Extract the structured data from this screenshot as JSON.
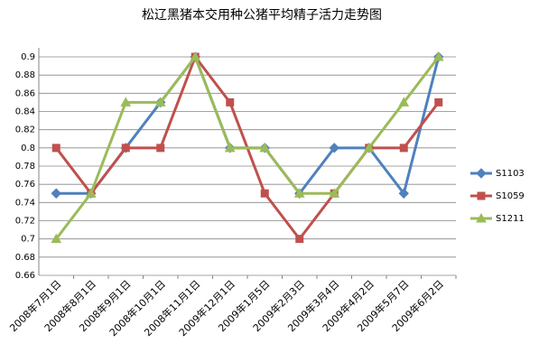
{
  "chart_data": {
    "type": "line",
    "title": "松辽黑猪本交用种公猪平均精子活力走势图",
    "categories": [
      "2008年7月1日",
      "2008年8月1日",
      "2008年9月1日",
      "2008年10月1日",
      "2008年11月1日",
      "2009年12月1日",
      "2009年1月5日",
      "2009年2月3日",
      "2009年3月4日",
      "2009年4月2日",
      "2009年5月7日",
      "2009年6月2日"
    ],
    "series": [
      {
        "name": "S1103",
        "color": "#4f81bd",
        "marker": "diamond",
        "values": [
          0.75,
          0.75,
          0.8,
          0.85,
          0.9,
          0.8,
          0.8,
          0.75,
          0.8,
          0.8,
          0.75,
          0.9
        ]
      },
      {
        "name": "S1059",
        "color": "#c0504d",
        "marker": "square",
        "values": [
          0.8,
          0.75,
          0.8,
          0.8,
          0.9,
          0.85,
          0.75,
          0.7,
          0.75,
          0.8,
          0.8,
          0.85
        ]
      },
      {
        "name": "S1211",
        "color": "#9bbb59",
        "marker": "triangle",
        "values": [
          0.7,
          0.75,
          0.85,
          0.85,
          0.9,
          0.8,
          0.8,
          0.75,
          0.75,
          0.8,
          0.85,
          0.9
        ]
      }
    ],
    "ylim": [
      0.66,
      0.9
    ],
    "yticks": [
      0.66,
      0.68,
      0.7,
      0.72,
      0.74,
      0.76,
      0.78,
      0.8,
      0.82,
      0.84,
      0.86,
      0.88,
      0.9
    ],
    "grid": true,
    "legend": "right"
  }
}
